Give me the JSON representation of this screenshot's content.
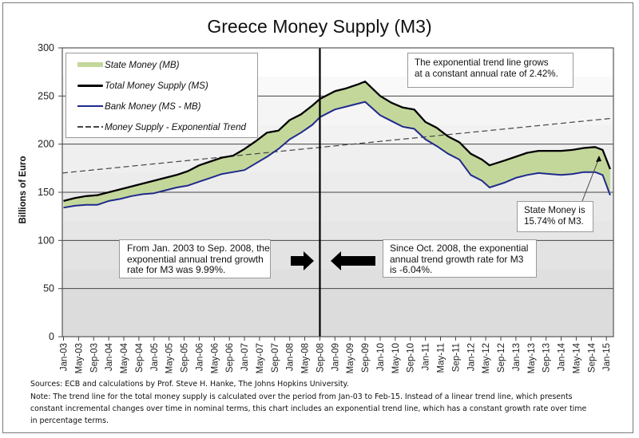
{
  "chart_data": {
    "type": "area",
    "title": "Greece Money Supply (M3)",
    "xlabel": "",
    "ylabel": "Billions of Euro",
    "ylim": [
      0,
      300
    ],
    "yticks": [
      0,
      50,
      100,
      150,
      200,
      250,
      300
    ],
    "grid": true,
    "legend_position": "top-left",
    "x_start": "Jan-03",
    "x_end": "Feb-15",
    "xtick_labels": [
      "Jan-03",
      "May-03",
      "Sep-03",
      "Jan-04",
      "May-04",
      "Sep-04",
      "Jan-05",
      "May-05",
      "Sep-05",
      "Jan-06",
      "May-06",
      "Sep-06",
      "Jan-07",
      "May-07",
      "Sep-07",
      "Jan-08",
      "May-08",
      "Sep-08",
      "Jan-09",
      "May-09",
      "Sep-09",
      "Jan-10",
      "May-10",
      "Sep-10",
      "Jan-11",
      "May-11",
      "Sep-11",
      "Jan-12",
      "May-12",
      "Sep-12",
      "Jan-13",
      "May-13",
      "Sep-13",
      "Jan-14",
      "May-14",
      "Sep-14",
      "Jan-15"
    ],
    "x": [
      "Jan-03",
      "Apr-03",
      "Jul-03",
      "Oct-03",
      "Jan-04",
      "Apr-04",
      "Jul-04",
      "Oct-04",
      "Jan-05",
      "Apr-05",
      "Jul-05",
      "Oct-05",
      "Jan-06",
      "Apr-06",
      "Jul-06",
      "Oct-06",
      "Jan-07",
      "Apr-07",
      "Jul-07",
      "Oct-07",
      "Jan-08",
      "Apr-08",
      "Jul-08",
      "Sep-08",
      "Jan-09",
      "Apr-09",
      "Jul-09",
      "Sep-09",
      "Jan-10",
      "Apr-10",
      "Jul-10",
      "Oct-10",
      "Jan-11",
      "Apr-11",
      "Jul-11",
      "Oct-11",
      "Jan-12",
      "Apr-12",
      "Jun-12",
      "Oct-12",
      "Jan-13",
      "Apr-13",
      "Jul-13",
      "Oct-13",
      "Jan-14",
      "Apr-14",
      "Jul-14",
      "Oct-14",
      "Dec-14",
      "Feb-15"
    ],
    "series": [
      {
        "name": "Total Money Supply (MS)",
        "color": "#000000",
        "values": [
          141,
          144,
          146,
          147,
          150,
          153,
          156,
          159,
          162,
          165,
          168,
          172,
          178,
          182,
          186,
          188,
          195,
          203,
          212,
          214,
          225,
          231,
          240,
          247,
          255,
          258,
          262,
          265,
          250,
          243,
          238,
          236,
          223,
          217,
          208,
          202,
          190,
          184,
          178,
          183,
          187,
          191,
          193,
          193,
          193,
          194,
          196,
          197,
          194,
          174
        ]
      },
      {
        "name": "Bank Money (MS - MB)",
        "color": "#1f2a8c",
        "values": [
          134,
          136,
          137,
          137,
          141,
          143,
          146,
          148,
          149,
          152,
          155,
          157,
          161,
          165,
          169,
          171,
          173,
          180,
          187,
          195,
          205,
          212,
          220,
          228,
          236,
          239,
          242,
          244,
          230,
          224,
          218,
          216,
          205,
          198,
          190,
          184,
          168,
          162,
          155,
          160,
          165,
          168,
          170,
          169,
          168,
          169,
          171,
          171,
          168,
          147
        ]
      },
      {
        "name": "State Money (MB)",
        "color": "#c4d79b",
        "note": "area between Total Money Supply and Bank Money"
      },
      {
        "name": "Money Supply - Exponential Trend",
        "color": "#444444",
        "style": "dashed",
        "start_value": 170,
        "end_value": 227,
        "annual_growth_pct": 2.42
      }
    ],
    "vertical_marker": "Sep-08",
    "annotations": [
      "The exponential trend line grows at a constant annual rate of 2.42%.",
      "From Jan. 2003 to Sep. 2008, the exponential annual trend growth rate for M3 was 9.99%.",
      "Since Oct. 2008, the exponential annual trend growth rate for M3 is -6.04%.",
      "State Money is 15.74% of M3."
    ]
  },
  "title": "Greece Money Supply (M3)",
  "ylabel": "Billions of Euro",
  "legend": {
    "state_money": "State Money (MB)",
    "total_money": "Total Money Supply (MS)",
    "bank_money": "Bank Money (MS - MB)",
    "trend": "Money Supply - Exponential Trend"
  },
  "annotations": {
    "trend_line_1": "The exponential trend line grows",
    "trend_line_2": "at a constant annual rate of 2.42%.",
    "pre_1": "From Jan. 2003 to Sep. 2008, the",
    "pre_2": "exponential annual trend growth",
    "pre_3": "rate for M3 was 9.99%.",
    "post_1": "Since Oct. 2008, the exponential",
    "post_2": "annual trend growth rate for M3",
    "post_3": "is -6.04%.",
    "state_1": "State Money is",
    "state_2": "15.74% of M3."
  },
  "footer": {
    "sources": "Sources: ECB and calculations by Prof. Steve H. Hanke, The Johns Hopkins University.",
    "note_1": "Note: The trend line for the total money supply is calculated over the period from Jan-03 to Feb-15. Instead of a linear trend line, which presents",
    "note_2": "constant incremental changes over time in nominal terms, this chart includes an exponential trend line, which has a constant growth rate over time",
    "note_3": "in percentage terms."
  }
}
